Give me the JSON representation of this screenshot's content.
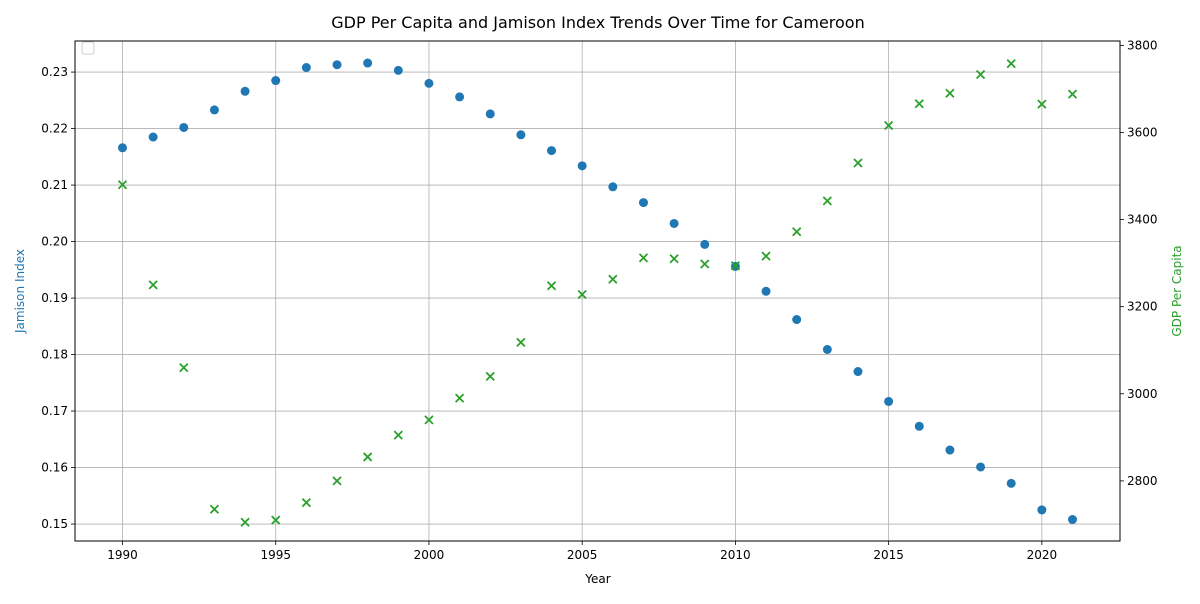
{
  "chart_data": {
    "type": "scatter",
    "title": "GDP Per Capita and Jamison Index Trends Over Time for Cameroon",
    "xlabel": "Year",
    "ylabel_left": "Jamison Index",
    "ylabel_right": "GDP Per Capita",
    "xlim": [
      1988.45,
      2022.55
    ],
    "ylim_left": [
      0.147,
      0.2355
    ],
    "ylim_right": [
      2662,
      3810
    ],
    "x_ticks": [
      1990,
      1995,
      2000,
      2005,
      2010,
      2015,
      2020
    ],
    "y_ticks_left": [
      0.15,
      0.16,
      0.17,
      0.18,
      0.19,
      0.2,
      0.21,
      0.22,
      0.23
    ],
    "y_ticks_right": [
      2800,
      3000,
      3200,
      3400,
      3600,
      3800
    ],
    "grid": true,
    "legend": "top-left",
    "colors": {
      "jamison": "#1f77b4",
      "gdp": "#2ca02c",
      "grid": "#b0b0b0"
    },
    "x": [
      1990,
      1991,
      1992,
      1993,
      1994,
      1995,
      1996,
      1997,
      1998,
      1999,
      2000,
      2001,
      2002,
      2003,
      2004,
      2005,
      2006,
      2007,
      2008,
      2009,
      2010,
      2011,
      2012,
      2013,
      2014,
      2015,
      2016,
      2017,
      2018,
      2019,
      2020,
      2021
    ],
    "series": [
      {
        "axis": "left",
        "marker": "circle",
        "values": [
          0.2166,
          0.2185,
          0.2202,
          0.2233,
          0.2266,
          0.2285,
          0.2308,
          0.2313,
          0.2316,
          0.2303,
          0.228,
          0.2256,
          0.2226,
          0.2189,
          0.2161,
          0.2134,
          0.2097,
          0.2069,
          0.2032,
          0.1995,
          0.1956,
          0.1912,
          0.1862,
          0.1809,
          0.177,
          0.1717,
          0.1673,
          0.1631,
          0.1601,
          0.1572,
          0.1525,
          0.1508
        ]
      },
      {
        "axis": "right",
        "marker": "x",
        "values": [
          3480,
          3250,
          3060,
          2735,
          2705,
          2710,
          2750,
          2800,
          2855,
          2905,
          2940,
          2990,
          3040,
          3118,
          3248,
          3228,
          3263,
          3312,
          3310,
          3298,
          3294,
          3316,
          3372,
          3443,
          3530,
          3616,
          3666,
          3690,
          3733,
          3758,
          3665,
          3688
        ]
      }
    ]
  }
}
